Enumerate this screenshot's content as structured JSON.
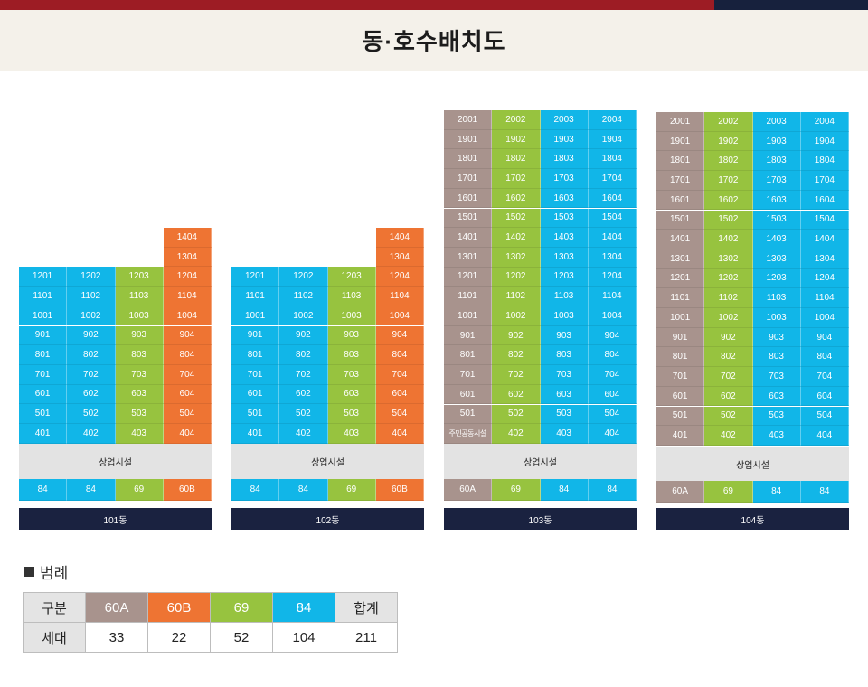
{
  "title": "동·호수배치도",
  "colors": {
    "60A": "#a8938d",
    "60B": "#ee7433",
    "69": "#97c33f",
    "84": "#11b6e8",
    "label_bar": "#1a2240"
  },
  "commercial_label": "상업시설",
  "buildings": [
    {
      "name": "101동",
      "types": [
        "84",
        "84",
        "69",
        "60B"
      ],
      "rows": [
        [
          "",
          "",
          "",
          "1404"
        ],
        [
          "",
          "",
          "",
          "1304"
        ],
        [
          "1201",
          "1202",
          "1203",
          "1204"
        ],
        [
          "1101",
          "1102",
          "1103",
          "1104"
        ],
        [
          "1001",
          "1002",
          "1003",
          "1004"
        ],
        [
          "901",
          "902",
          "903",
          "904"
        ],
        [
          "801",
          "802",
          "803",
          "804"
        ],
        [
          "701",
          "702",
          "703",
          "704"
        ],
        [
          "601",
          "602",
          "603",
          "604"
        ],
        [
          "501",
          "502",
          "503",
          "504"
        ],
        [
          "401",
          "402",
          "403",
          "404"
        ]
      ]
    },
    {
      "name": "102동",
      "types": [
        "84",
        "84",
        "69",
        "60B"
      ],
      "rows": [
        [
          "",
          "",
          "",
          "1404"
        ],
        [
          "",
          "",
          "",
          "1304"
        ],
        [
          "1201",
          "1202",
          "1203",
          "1204"
        ],
        [
          "1101",
          "1102",
          "1103",
          "1104"
        ],
        [
          "1001",
          "1002",
          "1003",
          "1004"
        ],
        [
          "901",
          "902",
          "903",
          "904"
        ],
        [
          "801",
          "802",
          "803",
          "804"
        ],
        [
          "701",
          "702",
          "703",
          "704"
        ],
        [
          "601",
          "602",
          "603",
          "604"
        ],
        [
          "501",
          "502",
          "503",
          "504"
        ],
        [
          "401",
          "402",
          "403",
          "404"
        ]
      ]
    },
    {
      "name": "103동",
      "types": [
        "60A",
        "69",
        "84",
        "84"
      ],
      "rows": [
        [
          "2001",
          "2002",
          "2003",
          "2004"
        ],
        [
          "1901",
          "1902",
          "1903",
          "1904"
        ],
        [
          "1801",
          "1802",
          "1803",
          "1804"
        ],
        [
          "1701",
          "1702",
          "1703",
          "1704"
        ],
        [
          "1601",
          "1602",
          "1603",
          "1604"
        ],
        [
          "1501",
          "1502",
          "1503",
          "1504"
        ],
        [
          "1401",
          "1402",
          "1403",
          "1404"
        ],
        [
          "1301",
          "1302",
          "1303",
          "1304"
        ],
        [
          "1201",
          "1202",
          "1203",
          "1204"
        ],
        [
          "1101",
          "1102",
          "1103",
          "1104"
        ],
        [
          "1001",
          "1002",
          "1003",
          "1004"
        ],
        [
          "901",
          "902",
          "903",
          "904"
        ],
        [
          "801",
          "802",
          "803",
          "804"
        ],
        [
          "701",
          "702",
          "703",
          "704"
        ],
        [
          "601",
          "602",
          "603",
          "604"
        ],
        [
          "501",
          "502",
          "503",
          "504"
        ],
        [
          "주민공동시설",
          "402",
          "403",
          "404"
        ]
      ]
    },
    {
      "name": "104동",
      "types": [
        "60A",
        "69",
        "84",
        "84"
      ],
      "rows": [
        [
          "2001",
          "2002",
          "2003",
          "2004"
        ],
        [
          "1901",
          "1902",
          "1903",
          "1904"
        ],
        [
          "1801",
          "1802",
          "1803",
          "1804"
        ],
        [
          "1701",
          "1702",
          "1703",
          "1704"
        ],
        [
          "1601",
          "1602",
          "1603",
          "1604"
        ],
        [
          "1501",
          "1502",
          "1503",
          "1504"
        ],
        [
          "1401",
          "1402",
          "1403",
          "1404"
        ],
        [
          "1301",
          "1302",
          "1303",
          "1304"
        ],
        [
          "1201",
          "1202",
          "1203",
          "1204"
        ],
        [
          "1101",
          "1102",
          "1103",
          "1104"
        ],
        [
          "1001",
          "1002",
          "1003",
          "1004"
        ],
        [
          "901",
          "902",
          "903",
          "904"
        ],
        [
          "801",
          "802",
          "803",
          "804"
        ],
        [
          "701",
          "702",
          "703",
          "704"
        ],
        [
          "601",
          "602",
          "603",
          "604"
        ],
        [
          "501",
          "502",
          "503",
          "504"
        ],
        [
          "401",
          "402",
          "403",
          "404"
        ]
      ]
    }
  ],
  "legend": {
    "title": "범례",
    "header": [
      "구분",
      "60A",
      "60B",
      "69",
      "84",
      "합계"
    ],
    "row": [
      "세대",
      "33",
      "22",
      "52",
      "104",
      "211"
    ]
  }
}
